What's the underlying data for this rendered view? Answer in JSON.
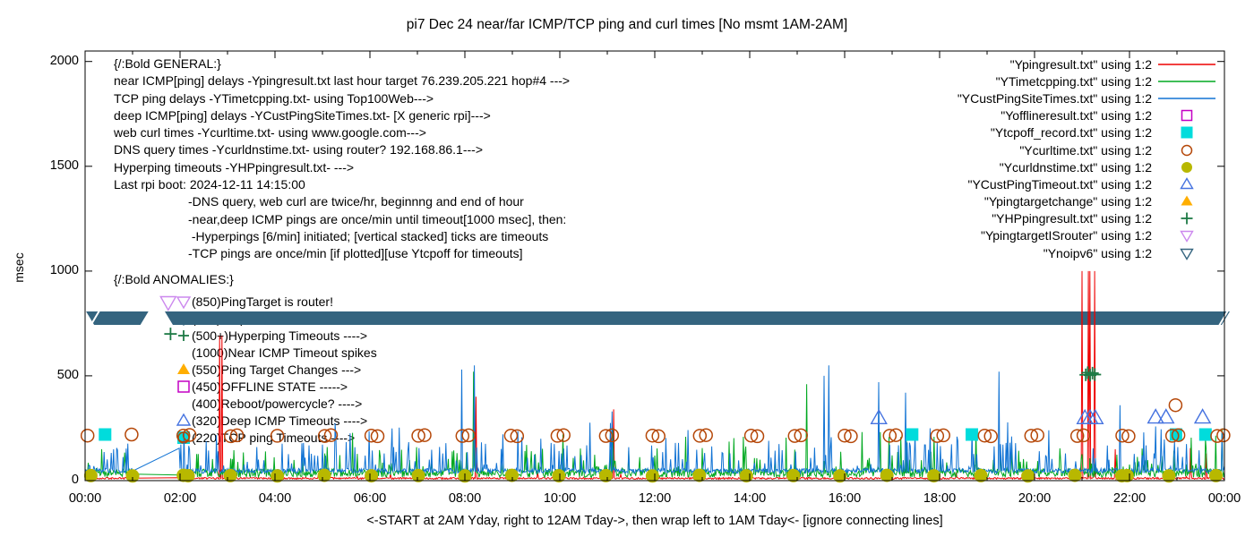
{
  "title": "pi7 Dec 24  near/far ICMP/TCP ping and curl times [No msmt 1AM-2AM]",
  "axes": {
    "ylabel": "msec",
    "xlabel": "<-START at 2AM Yday, right to 12AM Tday->, then wrap left to 1AM Tday<- [ignore connecting lines]",
    "x_ticks": [
      "00:00",
      "02:00",
      "04:00",
      "06:00",
      "08:00",
      "10:00",
      "12:00",
      "14:00",
      "16:00",
      "18:00",
      "20:00",
      "22:00",
      "00:00"
    ],
    "y_ticks": [
      "0",
      "500",
      "1000",
      "1500",
      "2000"
    ]
  },
  "legend": [
    {
      "key": "ping",
      "label": "\"Ypingresult.txt\" using 1:2",
      "type": "line",
      "color": "#ee0000"
    },
    {
      "key": "tcpping",
      "label": "\"YTimetcpping.txt\" using 1:2",
      "type": "line",
      "color": "#00a820"
    },
    {
      "key": "custping",
      "label": "\"YCustPingSiteTimes.txt\" using 1:2",
      "type": "line",
      "color": "#1173d4"
    },
    {
      "key": "offline",
      "label": "\"Yofflineresult.txt\" using 1:2",
      "type": "square-open",
      "color": "#c400c4"
    },
    {
      "key": "tcpoff",
      "label": "\"Ytcpoff_record.txt\" using 1:2",
      "type": "square-fill",
      "color": "#00dcdc"
    },
    {
      "key": "curl",
      "label": "\"Ycurltime.txt\" using 1:2",
      "type": "circle-open",
      "color": "#b54708"
    },
    {
      "key": "curldns",
      "label": "\"Ycurldnstime.txt\" using 1:2",
      "type": "circle-fill",
      "color": "#b8b800"
    },
    {
      "key": "custtimeout",
      "label": "\"YCustPingTimeout.txt\" using 1:2",
      "type": "triangle-up-open",
      "color": "#4673e0"
    },
    {
      "key": "targetchange",
      "label": "\"Ypingtargetchange\" using 1:2",
      "type": "triangle-up-fill",
      "color": "#ffae00"
    },
    {
      "key": "hp",
      "label": "\"YHPpingresult.txt\" using 1:2",
      "type": "plus",
      "color": "#1d7a45"
    },
    {
      "key": "isrouter",
      "label": "\"YpingtargetISrouter\" using 1:2",
      "type": "triangle-down-open",
      "color": "#cc88ee"
    },
    {
      "key": "noipv6",
      "label": "\"Ynoipv6\" using 1:2",
      "type": "triangle-down-open",
      "color": "#34647f"
    }
  ],
  "annotations": {
    "general": {
      "header": "{/:Bold GENERAL:}",
      "lines": [
        "near ICMP[ping] delays -Ypingresult.txt last hour target 76.239.205.221 hop#4 --->",
        "TCP ping delays -YTimetcpping.txt- using Top100Web--->",
        "deep ICMP[ping] delays -YCustPingSiteTimes.txt- [X generic rpi]--->",
        "web curl times -Ycurltime.txt- using www.google.com--->",
        "DNS query times -Ycurldnstime.txt- using router? 192.168.86.1--->",
        "Hyperping timeouts -YHPpingresult.txt- --->",
        "Last rpi boot: 2024-12-11 14:15:00"
      ],
      "sub_lines": [
        "-DNS query, web curl are twice/hr, beginnng and end of hour",
        "-near,deep ICMP pings are once/min until timeout[1000 msec], then:",
        " -Hyperpings [6/min] initiated; [vertical stacked] ticks are timeouts",
        "-TCP pings are once/min [if plotted][use Ytcpoff for timeouts]"
      ]
    },
    "anomalies": {
      "header": "{/:Bold ANOMALIES:}",
      "items": [
        {
          "marker": "triangle-down-open",
          "color": "#cc88ee",
          "text": "(850)PingTarget is router!"
        },
        {
          "marker": "triangle-down-open",
          "color": "#34647f",
          "text": "(775)Noipv6 fallback used --->"
        },
        {
          "marker": "plus",
          "color": "#1d7a45",
          "text": "(500+)Hyperping Timeouts ---->"
        },
        {
          "marker": "none",
          "color": "",
          "text": "(1000)Near ICMP Timeout spikes"
        },
        {
          "marker": "triangle-up-fill",
          "color": "#ffae00",
          "text": "(550)Ping Target Changes --->"
        },
        {
          "marker": "square-open",
          "color": "#c400c4",
          "text": "(450)OFFLINE STATE ----->"
        },
        {
          "marker": "none",
          "color": "",
          "text": "(400)Reboot/powercycle? ---->"
        },
        {
          "marker": "triangle-up-open",
          "color": "#4673e0",
          "text": "(320)Deep ICMP Timeouts ---->"
        },
        {
          "marker": "square-fill-circle",
          "color": "#00dcdc",
          "color2": "#b54708",
          "text": "(220)TCP ping Timeouts ---->"
        }
      ]
    }
  },
  "chart_data": {
    "type": "line",
    "title": "pi7 Dec 24  near/far ICMP/TCP ping and curl times [No msmt 1AM-2AM]",
    "xlabel": "<-START at 2AM Yday, right to 12AM Tday->, then wrap left to 1AM Tday<- [ignore connecting lines]",
    "ylabel": "msec",
    "xlim": [
      0,
      24
    ],
    "ylim": [
      0,
      2050
    ],
    "x_tick_hours": [
      0,
      2,
      4,
      6,
      8,
      10,
      12,
      14,
      16,
      18,
      20,
      22,
      24
    ],
    "y_tick_values": [
      0,
      500,
      1000,
      1500,
      2000
    ],
    "no_measurement_gap": [
      1.03,
      1.97
    ],
    "noise_series": [
      {
        "key": "ping",
        "color": "#ee0000",
        "base": 7,
        "amp": 8,
        "p1": 0.015,
        "s1base": 18,
        "s1amp": 22,
        "p2": 0,
        "s2base": 0,
        "s2amp": 0,
        "spikes": [
          [
            2.84,
            690
          ],
          [
            2.88,
            690
          ],
          [
            8.23,
            400
          ],
          [
            11.13,
            340
          ],
          [
            21.0,
            1000
          ],
          [
            21.13,
            1000
          ],
          [
            21.16,
            1000
          ],
          [
            21.27,
            1000
          ],
          [
            21.7,
            150
          ],
          [
            23.28,
            155
          ],
          [
            23.62,
            130
          ]
        ]
      },
      {
        "key": "tcpping",
        "color": "#00a820",
        "base": 16,
        "amp": 40,
        "p1": 0.1,
        "s1base": 55,
        "s1amp": 100,
        "p2": 0.013,
        "s2base": 150,
        "s2amp": 90,
        "spikes": [
          [
            0.35,
            150
          ],
          [
            5.1,
            160
          ],
          [
            8.19,
            520
          ],
          [
            9.3,
            170
          ],
          [
            11.12,
            250
          ],
          [
            13.0,
            155
          ],
          [
            15.2,
            460
          ],
          [
            17.3,
            200
          ],
          [
            23.3,
            205
          ],
          [
            23.6,
            200
          ],
          [
            23.82,
            215
          ],
          [
            23.95,
            250
          ]
        ]
      },
      {
        "key": "custping",
        "color": "#1173d4",
        "base": 36,
        "amp": 22,
        "p1": 0.13,
        "s1base": 65,
        "s1amp": 120,
        "p2": 0.02,
        "s2base": 170,
        "s2amp": 110,
        "spikes": [
          [
            2.2,
            150
          ],
          [
            4.6,
            180
          ],
          [
            6.5,
            160
          ],
          [
            7.93,
            530
          ],
          [
            8.2,
            550
          ],
          [
            9.6,
            200
          ],
          [
            11.1,
            330
          ],
          [
            12.5,
            180
          ],
          [
            14.4,
            190
          ],
          [
            15.56,
            500
          ],
          [
            15.66,
            550
          ],
          [
            16.72,
            470
          ],
          [
            17.28,
            420
          ],
          [
            17.8,
            250
          ],
          [
            19.25,
            520
          ],
          [
            20.3,
            240
          ],
          [
            21.8,
            360
          ],
          [
            22.3,
            230
          ],
          [
            23.95,
            230
          ]
        ]
      }
    ],
    "scatter_series": [
      {
        "key": "offline",
        "marker": "square-open",
        "color": "#c400c4",
        "points": []
      },
      {
        "key": "tcpoff",
        "marker": "square-fill",
        "color": "#00dcdc",
        "points": [
          [
            0.42,
            220
          ],
          [
            17.42,
            220
          ],
          [
            18.68,
            220
          ],
          [
            22.98,
            220
          ],
          [
            23.6,
            220
          ]
        ]
      },
      {
        "key": "curl",
        "marker": "circle-open",
        "color": "#b54708",
        "points": [
          [
            0.05,
            215
          ],
          [
            0.98,
            220
          ],
          [
            2.07,
            215
          ],
          [
            2.2,
            218
          ],
          [
            3.07,
            212
          ],
          [
            3.2,
            216
          ],
          [
            4.05,
            214
          ],
          [
            5.05,
            213
          ],
          [
            5.18,
            217
          ],
          [
            6.03,
            215
          ],
          [
            6.16,
            212
          ],
          [
            7.02,
            214
          ],
          [
            7.15,
            217
          ],
          [
            7.95,
            213
          ],
          [
            8.08,
            216
          ],
          [
            8.97,
            215
          ],
          [
            9.1,
            212
          ],
          [
            9.95,
            214
          ],
          [
            10.08,
            217
          ],
          [
            10.97,
            213
          ],
          [
            11.1,
            216
          ],
          [
            11.95,
            215
          ],
          [
            12.08,
            212
          ],
          [
            12.95,
            214
          ],
          [
            13.08,
            217
          ],
          [
            14.03,
            215
          ],
          [
            14.16,
            212
          ],
          [
            14.95,
            213
          ],
          [
            15.08,
            216
          ],
          [
            16.0,
            215
          ],
          [
            16.13,
            212
          ],
          [
            16.95,
            214
          ],
          [
            17.08,
            217
          ],
          [
            17.95,
            213
          ],
          [
            18.08,
            216
          ],
          [
            18.95,
            215
          ],
          [
            19.08,
            212
          ],
          [
            19.93,
            214
          ],
          [
            20.06,
            217
          ],
          [
            20.9,
            213
          ],
          [
            21.03,
            216
          ],
          [
            21.85,
            215
          ],
          [
            21.98,
            212
          ],
          [
            22.9,
            214
          ],
          [
            22.97,
            360
          ],
          [
            23.03,
            217
          ],
          [
            23.85,
            213
          ],
          [
            23.98,
            216
          ]
        ]
      },
      {
        "key": "curldns",
        "marker": "circle-fill",
        "color": "#b8b800",
        "points": [
          [
            0.12,
            24
          ],
          [
            1.0,
            22
          ],
          [
            2.07,
            25
          ],
          [
            2.17,
            23
          ],
          [
            3.06,
            24
          ],
          [
            4.05,
            22
          ],
          [
            5.04,
            25
          ],
          [
            6.03,
            23
          ],
          [
            7.02,
            24
          ],
          [
            8.0,
            22
          ],
          [
            8.99,
            25
          ],
          [
            9.98,
            23
          ],
          [
            10.97,
            24
          ],
          [
            11.95,
            22
          ],
          [
            12.94,
            25
          ],
          [
            13.93,
            23
          ],
          [
            14.92,
            24
          ],
          [
            15.9,
            22
          ],
          [
            16.89,
            25
          ],
          [
            17.88,
            23
          ],
          [
            18.87,
            24
          ],
          [
            19.86,
            22
          ],
          [
            20.85,
            25
          ],
          [
            21.84,
            23
          ],
          [
            21.95,
            24
          ],
          [
            22.83,
            22
          ],
          [
            23.82,
            24
          ]
        ]
      },
      {
        "key": "custtimeout",
        "marker": "triangle-up-open",
        "color": "#4673e0",
        "points": [
          [
            16.72,
            300
          ],
          [
            21.06,
            300
          ],
          [
            21.17,
            300
          ],
          [
            21.28,
            300
          ],
          [
            22.55,
            303
          ],
          [
            22.77,
            303
          ],
          [
            23.54,
            303
          ]
        ]
      },
      {
        "key": "targetchange",
        "marker": "triangle-up-fill",
        "color": "#ffae00",
        "points": []
      },
      {
        "key": "hp",
        "marker": "plus",
        "color": "#1d7a45",
        "points": [
          [
            1.8,
            700
          ],
          [
            21.08,
            505
          ],
          [
            21.12,
            515
          ],
          [
            21.17,
            503
          ],
          [
            21.22,
            513
          ],
          [
            21.27,
            506
          ]
        ]
      },
      {
        "key": "isrouter",
        "marker": "triangle-down-open",
        "color": "#cc88ee",
        "points": [
          [
            1.75,
            850
          ]
        ]
      },
      {
        "key": "noipv6",
        "marker": "triangle-down-open",
        "color": "#34647f",
        "points": [],
        "band": {
          "value": 775,
          "segments": [
            [
              0.02,
              1.22
            ],
            [
              1.68,
              24.05
            ]
          ]
        }
      }
    ]
  }
}
